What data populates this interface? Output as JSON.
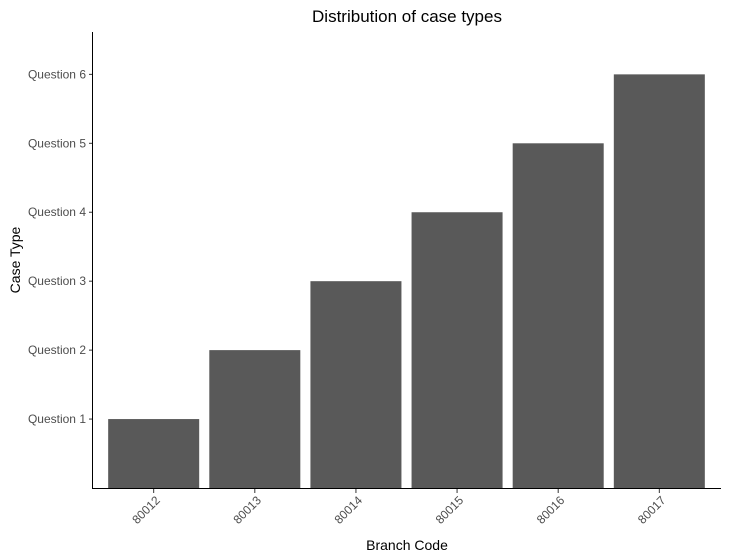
{
  "chart_data": {
    "type": "bar",
    "title": "Distribution of case types",
    "xlabel": "Branch Code",
    "ylabel": "Case Type",
    "categories": [
      "80012",
      "80013",
      "80014",
      "80015",
      "80016",
      "80017"
    ],
    "y_levels": [
      "Question 1",
      "Question 2",
      "Question 3",
      "Question 4",
      "Question 5",
      "Question 6"
    ],
    "values": [
      "Question 1",
      "Question 2",
      "Question 3",
      "Question 4",
      "Question 5",
      "Question 6"
    ],
    "ylim": [
      0,
      6.6
    ],
    "grid": false,
    "legend": "none",
    "bar_color": "#595959",
    "x_tick_rotation": -45
  }
}
